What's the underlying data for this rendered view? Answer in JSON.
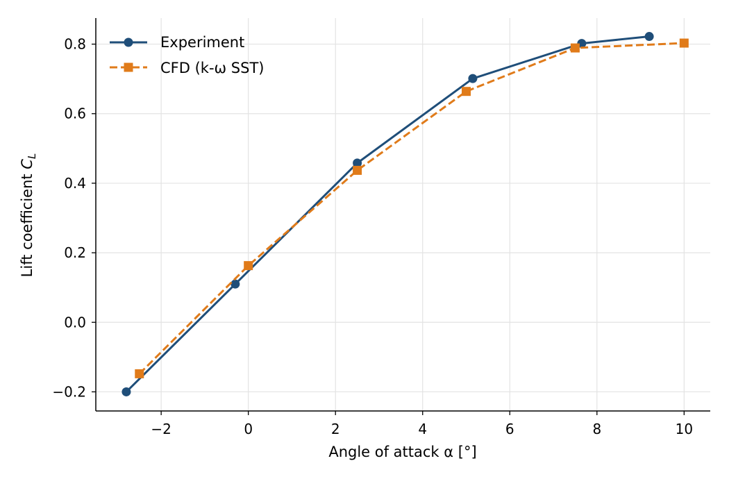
{
  "chart_data": {
    "type": "line",
    "title": "",
    "xlabel": "Angle of attack α [°]",
    "ylabel_main": "Lift coefficient ",
    "ylabel_sym": "C",
    "ylabel_sub": "L",
    "xlim": [
      -3.5,
      10.6
    ],
    "ylim": [
      -0.255,
      0.875
    ],
    "xticks": [
      -2,
      0,
      2,
      4,
      6,
      8,
      10
    ],
    "xtick_labels": [
      "−2",
      "0",
      "2",
      "4",
      "6",
      "8",
      "10"
    ],
    "yticks": [
      -0.2,
      0.0,
      0.2,
      0.4,
      0.6,
      0.8
    ],
    "ytick_labels": [
      "−0.2",
      "0.0",
      "0.2",
      "0.4",
      "0.6",
      "0.8"
    ],
    "grid": true,
    "legend_position": "top-left",
    "series": [
      {
        "name": "Experiment",
        "color": "#1f4e79",
        "marker": "circle",
        "linestyle": "solid",
        "x": [
          -2.8,
          -0.3,
          2.5,
          5.15,
          7.65,
          9.2
        ],
        "y": [
          -0.2,
          0.11,
          0.458,
          0.701,
          0.802,
          0.822
        ]
      },
      {
        "name": "CFD (k-ω SST)",
        "color": "#e07b1a",
        "marker": "square",
        "linestyle": "dashed",
        "x": [
          -2.5,
          0.0,
          2.5,
          5.0,
          7.5,
          10.0
        ],
        "y": [
          -0.148,
          0.163,
          0.437,
          0.664,
          0.789,
          0.803
        ]
      }
    ]
  }
}
